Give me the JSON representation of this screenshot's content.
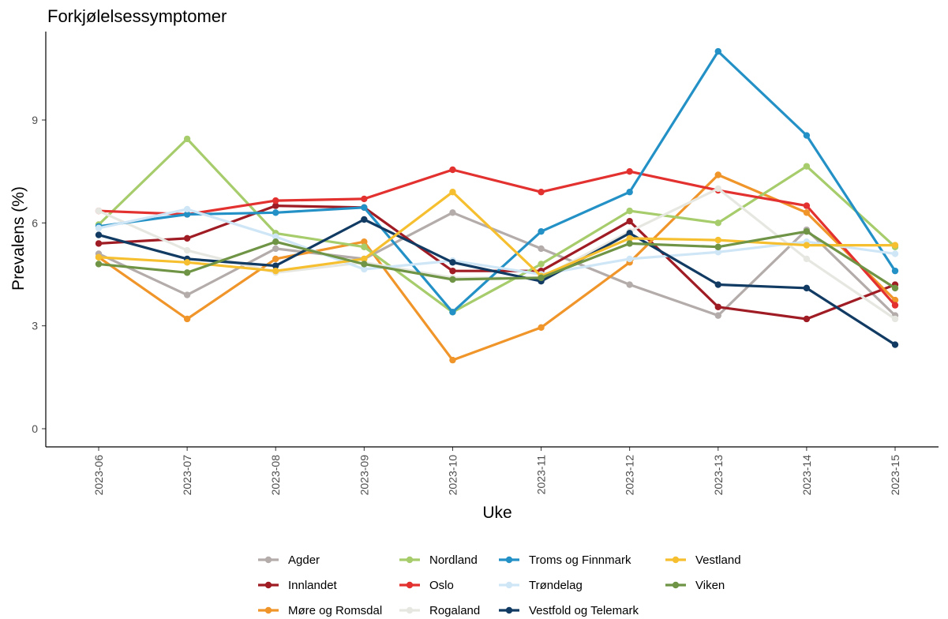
{
  "chart_data": {
    "type": "line",
    "title": "Forkjølelsessymptomer",
    "xlabel": "Uke",
    "ylabel": "Prevalens (%)",
    "x": [
      "2023-06",
      "2023-07",
      "2023-08",
      "2023-09",
      "2023-10",
      "2023-11",
      "2023-12",
      "2023-13",
      "2023-14",
      "2023-15"
    ],
    "ylim": [
      -0.5,
      11.3
    ],
    "yticks": [
      0,
      3,
      6,
      9
    ],
    "grid": false,
    "legend_position": "bottom",
    "series": [
      {
        "name": "Agder",
        "color": "#b3acaa",
        "values": [
          5.1,
          3.9,
          5.25,
          4.95,
          6.3,
          5.25,
          4.2,
          3.3,
          5.8,
          3.3
        ]
      },
      {
        "name": "Innlandet",
        "color": "#a01c24",
        "values": [
          5.4,
          5.55,
          6.5,
          6.45,
          4.6,
          4.6,
          6.05,
          3.55,
          3.2,
          4.2
        ]
      },
      {
        "name": "Møre og Romsdal",
        "color": "#f0952a",
        "values": [
          5.0,
          3.2,
          4.95,
          5.45,
          2.0,
          2.95,
          4.85,
          7.4,
          6.3,
          3.75
        ]
      },
      {
        "name": "Nordland",
        "color": "#a6cc6b",
        "values": [
          5.95,
          8.45,
          5.7,
          5.3,
          3.4,
          4.8,
          6.35,
          6.0,
          7.65,
          5.3
        ]
      },
      {
        "name": "Oslo",
        "color": "#e2312f",
        "values": [
          6.35,
          6.25,
          6.65,
          6.7,
          7.55,
          6.9,
          7.5,
          6.95,
          6.5,
          3.6
        ]
      },
      {
        "name": "Rogaland",
        "color": "#e7e7e2",
        "values": [
          6.35,
          5.2,
          4.55,
          4.85,
          4.4,
          4.4,
          5.75,
          7.0,
          4.95,
          3.2
        ]
      },
      {
        "name": "Troms og Finnmark",
        "color": "#2391c6",
        "values": [
          5.9,
          6.25,
          6.3,
          6.45,
          3.4,
          5.75,
          6.9,
          11.0,
          8.55,
          4.6
        ]
      },
      {
        "name": "Trøndelag",
        "color": "#cfe6f7",
        "values": [
          5.85,
          6.4,
          5.6,
          4.65,
          4.9,
          4.5,
          4.95,
          5.15,
          5.45,
          5.1
        ]
      },
      {
        "name": "Vestfold og Telemark",
        "color": "#123b63",
        "values": [
          5.65,
          4.95,
          4.75,
          6.1,
          4.85,
          4.3,
          5.7,
          4.2,
          4.1,
          2.45
        ]
      },
      {
        "name": "Vestland",
        "color": "#f6bf2f",
        "values": [
          5.0,
          4.85,
          4.6,
          4.95,
          6.9,
          4.45,
          5.55,
          5.5,
          5.35,
          5.35
        ]
      },
      {
        "name": "Viken",
        "color": "#6f9446",
        "values": [
          4.8,
          4.55,
          5.45,
          4.8,
          4.35,
          4.4,
          5.4,
          5.3,
          5.75,
          4.1
        ]
      }
    ]
  }
}
